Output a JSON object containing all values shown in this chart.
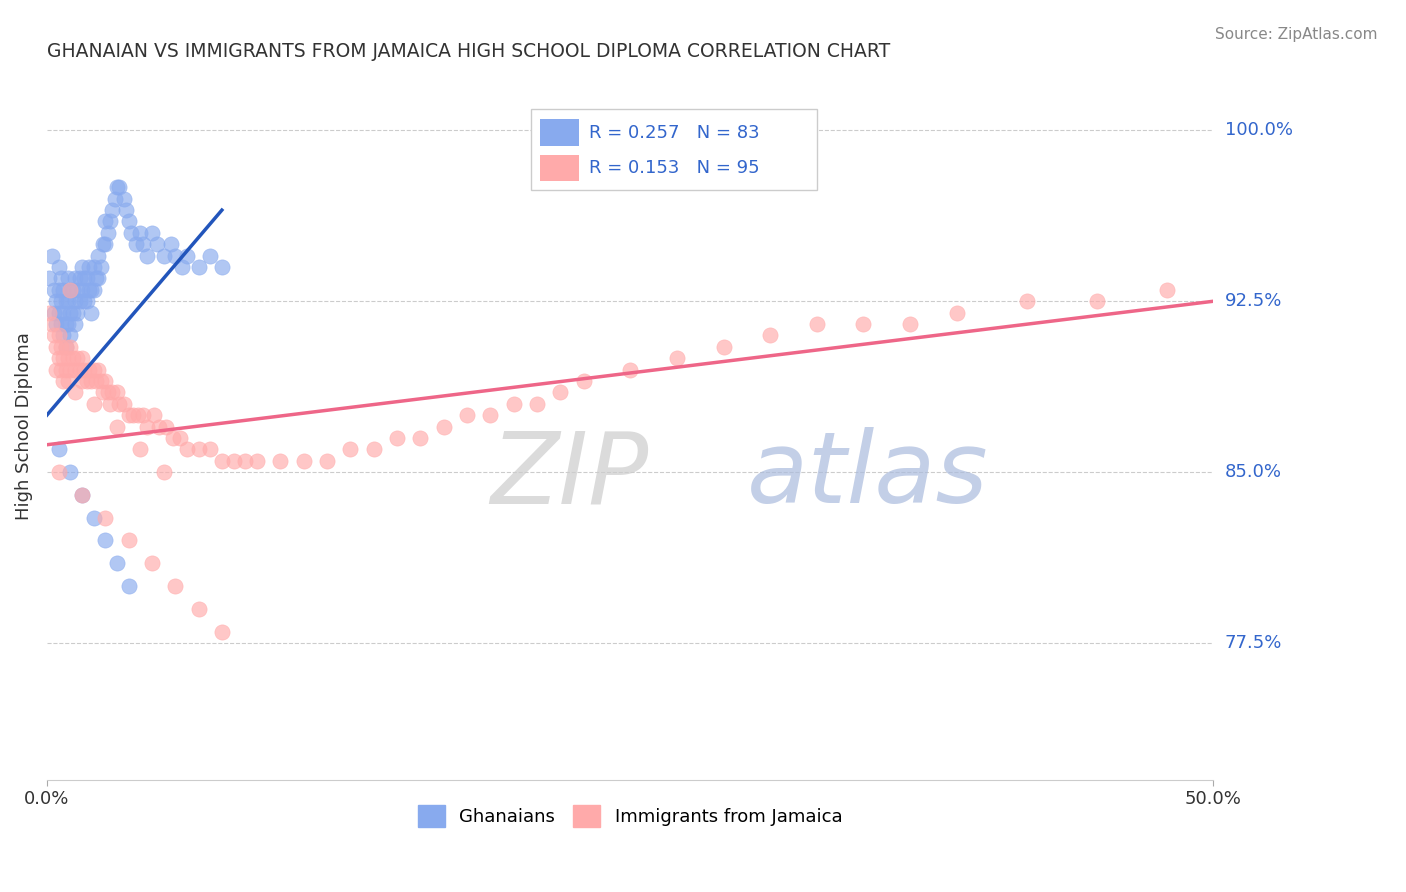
{
  "title": "GHANAIAN VS IMMIGRANTS FROM JAMAICA HIGH SCHOOL DIPLOMA CORRELATION CHART",
  "source": "Source: ZipAtlas.com",
  "ylabel": "High School Diploma",
  "y_ticks": [
    "77.5%",
    "85.0%",
    "92.5%",
    "100.0%"
  ],
  "y_tick_values": [
    0.775,
    0.85,
    0.925,
    1.0
  ],
  "x_lim": [
    0.0,
    0.5
  ],
  "y_lim": [
    0.715,
    1.025
  ],
  "legend_R1": "0.257",
  "legend_N1": "83",
  "legend_R2": "0.153",
  "legend_N2": "95",
  "color_blue": "#88AAEE",
  "color_pink": "#FFAAAA",
  "color_blue_line": "#2255BB",
  "color_pink_line": "#EE6688",
  "color_blue_label": "#3366CC",
  "watermark_text": "ZIPatlas",
  "ghanaian_x": [
    0.001,
    0.002,
    0.003,
    0.003,
    0.004,
    0.004,
    0.005,
    0.005,
    0.005,
    0.006,
    0.006,
    0.006,
    0.007,
    0.007,
    0.007,
    0.008,
    0.008,
    0.008,
    0.009,
    0.009,
    0.009,
    0.01,
    0.01,
    0.01,
    0.011,
    0.011,
    0.012,
    0.012,
    0.012,
    0.013,
    0.013,
    0.014,
    0.014,
    0.015,
    0.015,
    0.016,
    0.016,
    0.017,
    0.017,
    0.018,
    0.018,
    0.019,
    0.019,
    0.02,
    0.02,
    0.021,
    0.022,
    0.022,
    0.023,
    0.024,
    0.025,
    0.025,
    0.026,
    0.027,
    0.028,
    0.029,
    0.03,
    0.031,
    0.033,
    0.034,
    0.035,
    0.036,
    0.038,
    0.04,
    0.041,
    0.043,
    0.045,
    0.047,
    0.05,
    0.053,
    0.055,
    0.058,
    0.06,
    0.065,
    0.07,
    0.075,
    0.005,
    0.01,
    0.015,
    0.02,
    0.025,
    0.03,
    0.035
  ],
  "ghanaian_y": [
    0.935,
    0.945,
    0.93,
    0.92,
    0.925,
    0.915,
    0.94,
    0.93,
    0.92,
    0.935,
    0.925,
    0.915,
    0.93,
    0.92,
    0.91,
    0.925,
    0.915,
    0.905,
    0.935,
    0.925,
    0.915,
    0.93,
    0.92,
    0.91,
    0.93,
    0.92,
    0.935,
    0.925,
    0.915,
    0.93,
    0.92,
    0.935,
    0.925,
    0.94,
    0.93,
    0.935,
    0.925,
    0.935,
    0.925,
    0.94,
    0.93,
    0.93,
    0.92,
    0.94,
    0.93,
    0.935,
    0.945,
    0.935,
    0.94,
    0.95,
    0.96,
    0.95,
    0.955,
    0.96,
    0.965,
    0.97,
    0.975,
    0.975,
    0.97,
    0.965,
    0.96,
    0.955,
    0.95,
    0.955,
    0.95,
    0.945,
    0.955,
    0.95,
    0.945,
    0.95,
    0.945,
    0.94,
    0.945,
    0.94,
    0.945,
    0.94,
    0.86,
    0.85,
    0.84,
    0.83,
    0.82,
    0.81,
    0.8
  ],
  "jamaica_x": [
    0.001,
    0.002,
    0.003,
    0.004,
    0.004,
    0.005,
    0.005,
    0.006,
    0.006,
    0.007,
    0.007,
    0.008,
    0.008,
    0.009,
    0.009,
    0.01,
    0.01,
    0.011,
    0.012,
    0.012,
    0.013,
    0.014,
    0.015,
    0.015,
    0.016,
    0.017,
    0.018,
    0.019,
    0.02,
    0.021,
    0.022,
    0.023,
    0.024,
    0.025,
    0.026,
    0.027,
    0.028,
    0.03,
    0.031,
    0.033,
    0.035,
    0.037,
    0.039,
    0.041,
    0.043,
    0.046,
    0.048,
    0.051,
    0.054,
    0.057,
    0.06,
    0.065,
    0.07,
    0.075,
    0.08,
    0.085,
    0.09,
    0.1,
    0.11,
    0.12,
    0.13,
    0.14,
    0.15,
    0.16,
    0.17,
    0.18,
    0.19,
    0.2,
    0.21,
    0.22,
    0.23,
    0.25,
    0.27,
    0.29,
    0.31,
    0.33,
    0.35,
    0.37,
    0.39,
    0.42,
    0.45,
    0.48,
    0.005,
    0.015,
    0.025,
    0.035,
    0.045,
    0.055,
    0.065,
    0.075,
    0.01,
    0.02,
    0.03,
    0.04,
    0.05
  ],
  "jamaica_y": [
    0.92,
    0.915,
    0.91,
    0.905,
    0.895,
    0.91,
    0.9,
    0.905,
    0.895,
    0.9,
    0.89,
    0.905,
    0.895,
    0.9,
    0.89,
    0.905,
    0.895,
    0.9,
    0.895,
    0.885,
    0.9,
    0.895,
    0.9,
    0.89,
    0.895,
    0.89,
    0.895,
    0.89,
    0.895,
    0.89,
    0.895,
    0.89,
    0.885,
    0.89,
    0.885,
    0.88,
    0.885,
    0.885,
    0.88,
    0.88,
    0.875,
    0.875,
    0.875,
    0.875,
    0.87,
    0.875,
    0.87,
    0.87,
    0.865,
    0.865,
    0.86,
    0.86,
    0.86,
    0.855,
    0.855,
    0.855,
    0.855,
    0.855,
    0.855,
    0.855,
    0.86,
    0.86,
    0.865,
    0.865,
    0.87,
    0.875,
    0.875,
    0.88,
    0.88,
    0.885,
    0.89,
    0.895,
    0.9,
    0.905,
    0.91,
    0.915,
    0.915,
    0.915,
    0.92,
    0.925,
    0.925,
    0.93,
    0.85,
    0.84,
    0.83,
    0.82,
    0.81,
    0.8,
    0.79,
    0.78,
    0.93,
    0.88,
    0.87,
    0.86,
    0.85
  ],
  "blue_line_x": [
    0.0,
    0.075
  ],
  "blue_line_y": [
    0.875,
    0.965
  ],
  "pink_line_x": [
    0.0,
    0.5
  ],
  "pink_line_y": [
    0.862,
    0.925
  ]
}
